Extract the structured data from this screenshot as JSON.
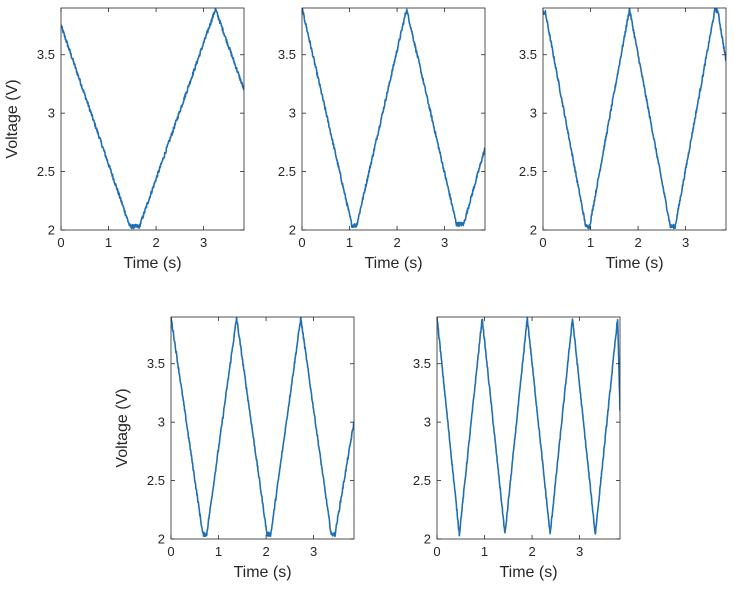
{
  "colors": {
    "trace": "#1f6fb2",
    "axis": "#262626",
    "background": "#ffffff"
  },
  "chart_data": [
    {
      "type": "line",
      "xlabel": "Time (s)",
      "ylabel": "Voltage (V)",
      "xlim": [
        0,
        3.85
      ],
      "ylim": [
        2,
        3.9
      ],
      "xticks": [
        0,
        1,
        2,
        3
      ],
      "yticks": [
        2,
        2.5,
        3,
        3.5
      ],
      "series": [
        {
          "x": [
            0,
            1.45,
            1.65,
            3.25,
            3.85
          ],
          "y": [
            3.75,
            2.03,
            2.03,
            3.89,
            3.2
          ]
        }
      ]
    },
    {
      "type": "line",
      "xlabel": "Time (s)",
      "ylabel": "",
      "xlim": [
        0,
        3.85
      ],
      "ylim": [
        2,
        3.9
      ],
      "xticks": [
        0,
        1,
        2,
        3
      ],
      "yticks": [
        2,
        2.5,
        3,
        3.5
      ],
      "series": [
        {
          "x": [
            0,
            1.05,
            1.15,
            2.2,
            3.25,
            3.4,
            3.85
          ],
          "y": [
            3.9,
            2.04,
            2.04,
            3.89,
            2.05,
            2.05,
            2.7
          ]
        }
      ]
    },
    {
      "type": "line",
      "xlabel": "Time (s)",
      "ylabel": "",
      "xlim": [
        0,
        3.85
      ],
      "ylim": [
        2,
        3.9
      ],
      "xticks": [
        0,
        1,
        2,
        3
      ],
      "yticks": [
        2,
        2.5,
        3,
        3.5
      ],
      "series": [
        {
          "x": [
            0,
            0.05,
            0.9,
            0.98,
            1.82,
            2.68,
            2.78,
            3.62,
            3.68,
            3.85
          ],
          "y": [
            3.86,
            3.86,
            2.03,
            2.03,
            3.89,
            2.03,
            2.03,
            3.89,
            3.87,
            3.45
          ]
        }
      ]
    },
    {
      "type": "line",
      "xlabel": "Time (s)",
      "ylabel": "Voltage (V)",
      "xlim": [
        0,
        3.85
      ],
      "ylim": [
        2,
        3.9
      ],
      "xticks": [
        0,
        1,
        2,
        3
      ],
      "yticks": [
        2,
        2.5,
        3,
        3.5
      ],
      "series": [
        {
          "x": [
            0,
            0.67,
            0.75,
            1.38,
            2.02,
            2.1,
            2.73,
            3.37,
            3.45,
            3.85
          ],
          "y": [
            3.9,
            2.04,
            2.04,
            3.89,
            2.04,
            2.04,
            3.89,
            2.04,
            2.04,
            3.0
          ]
        }
      ]
    },
    {
      "type": "line",
      "xlabel": "Time (s)",
      "ylabel": "",
      "xlim": [
        0,
        3.85
      ],
      "ylim": [
        2,
        3.9
      ],
      "xticks": [
        0,
        1,
        2,
        3
      ],
      "yticks": [
        2,
        2.5,
        3,
        3.5
      ],
      "series": [
        {
          "x": [
            0,
            0.47,
            0.95,
            1.43,
            1.9,
            2.38,
            2.85,
            3.33,
            3.8,
            3.85
          ],
          "y": [
            3.9,
            2.04,
            3.89,
            2.04,
            3.89,
            2.04,
            3.89,
            2.04,
            3.89,
            3.1
          ]
        }
      ]
    }
  ]
}
